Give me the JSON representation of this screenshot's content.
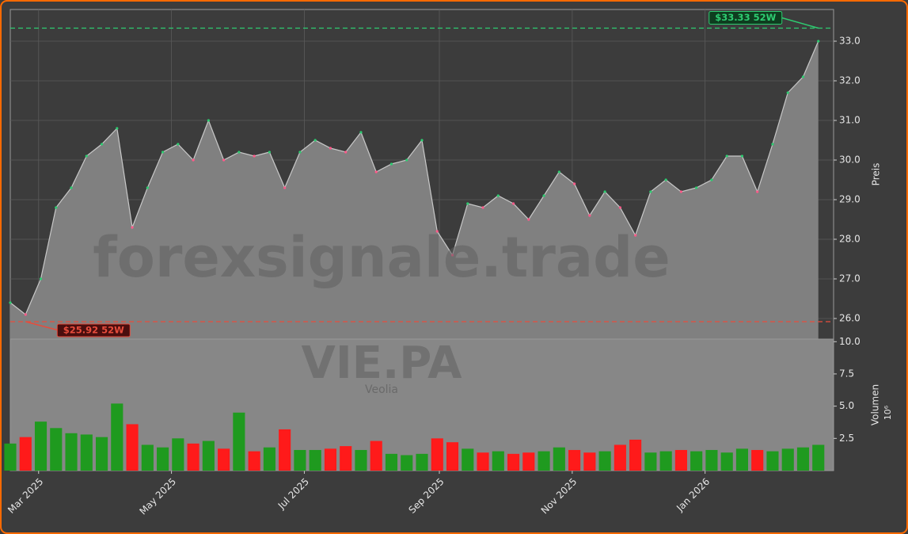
{
  "chart_data": [
    {
      "type": "area",
      "ylabel": "Preis",
      "color": "#808080",
      "line_color": "#c8c8c8",
      "xlim": [
        0,
        378
      ],
      "xticks": [
        {
          "value": 13,
          "label": "Mar 2025"
        },
        {
          "value": 74,
          "label": "May 2025"
        },
        {
          "value": 135,
          "label": "Jul 2025"
        },
        {
          "value": 197,
          "label": "Sep 2025"
        },
        {
          "value": 258,
          "label": "Nov 2025"
        },
        {
          "value": 319,
          "label": "Jan 2026"
        }
      ],
      "ylim": [
        25.48,
        33.8
      ],
      "yticks": [
        {
          "value": 26,
          "label": "26.0"
        },
        {
          "value": 27,
          "label": "27.0"
        },
        {
          "value": 28,
          "label": "28.0"
        },
        {
          "value": 29,
          "label": "29.0"
        },
        {
          "value": 30,
          "label": "30.0"
        },
        {
          "value": 31,
          "label": "31.0"
        },
        {
          "value": 32,
          "label": "32.0"
        },
        {
          "value": 33,
          "label": "33.0"
        }
      ],
      "grid": true,
      "x": [
        0,
        7,
        14,
        21,
        28,
        35,
        42,
        49,
        56,
        63,
        70,
        77,
        84,
        91,
        98,
        105,
        112,
        119,
        126,
        133,
        140,
        147,
        154,
        161,
        168,
        175,
        182,
        189,
        196,
        203,
        210,
        217,
        224,
        231,
        238,
        245,
        252,
        259,
        266,
        273,
        280,
        287,
        294,
        301,
        308,
        315,
        322,
        329,
        336,
        343,
        350,
        357,
        364,
        371
      ],
      "values": [
        26.4,
        26.1,
        27.0,
        28.8,
        29.3,
        30.1,
        30.4,
        30.8,
        28.3,
        29.3,
        30.2,
        30.4,
        30.0,
        31.0,
        30.0,
        30.2,
        30.1,
        30.2,
        29.3,
        30.2,
        30.5,
        30.3,
        30.2,
        30.7,
        29.7,
        29.9,
        30.0,
        30.5,
        28.2,
        27.6,
        28.9,
        28.8,
        29.1,
        28.9,
        28.5,
        29.1,
        29.7,
        29.4,
        28.6,
        29.2,
        28.8,
        28.1,
        29.2,
        29.5,
        29.2,
        29.3,
        29.5,
        30.1,
        30.1,
        29.2,
        30.4,
        31.7,
        32.1,
        33.0
      ],
      "hlines": [
        {
          "value": 33.33,
          "label": "$33.33 52W",
          "color": "#2ecc71",
          "x": 371
        },
        {
          "value": 25.92,
          "label": "$25.92 52W",
          "color": "#e74c3c",
          "x": 7
        }
      ]
    },
    {
      "type": "bar",
      "ylabel": "Volumen",
      "scale_label": "10⁶",
      "up_color": "#1f9a1f",
      "down_color": "#ff1a1a",
      "xlim": [
        0,
        378
      ],
      "ylim": [
        0,
        10.2
      ],
      "yticks": [
        {
          "value": 2.5,
          "label": "2.5"
        },
        {
          "value": 5,
          "label": "5.0"
        },
        {
          "value": 7.5,
          "label": "7.5"
        },
        {
          "value": 10,
          "label": "10.0"
        }
      ],
      "x": [
        0,
        7,
        14,
        21,
        28,
        35,
        42,
        49,
        56,
        63,
        70,
        77,
        84,
        91,
        98,
        105,
        112,
        119,
        126,
        133,
        140,
        147,
        154,
        161,
        168,
        175,
        182,
        189,
        196,
        203,
        210,
        217,
        224,
        231,
        238,
        245,
        252,
        259,
        266,
        273,
        280,
        287,
        294,
        301,
        308,
        315,
        322,
        329,
        336,
        343,
        350,
        357,
        364,
        371
      ],
      "values": [
        2.1,
        2.6,
        3.8,
        3.3,
        2.9,
        2.8,
        2.6,
        5.2,
        3.6,
        2.0,
        1.8,
        2.5,
        2.1,
        2.3,
        1.7,
        4.5,
        1.5,
        1.8,
        3.2,
        1.6,
        1.6,
        1.7,
        1.9,
        1.6,
        2.3,
        1.3,
        1.2,
        1.3,
        2.5,
        2.2,
        1.7,
        1.4,
        1.5,
        1.3,
        1.4,
        1.5,
        1.8,
        1.6,
        1.4,
        1.5,
        2.0,
        2.4,
        1.4,
        1.5,
        1.6,
        1.5,
        1.6,
        1.4,
        1.7,
        1.6,
        1.5,
        1.7,
        1.8,
        2.0
      ]
    },
    {
      "type": "watermark",
      "text": "forexsignale.trade",
      "symbol": "VIE.PA",
      "name": "Veolia"
    }
  ]
}
